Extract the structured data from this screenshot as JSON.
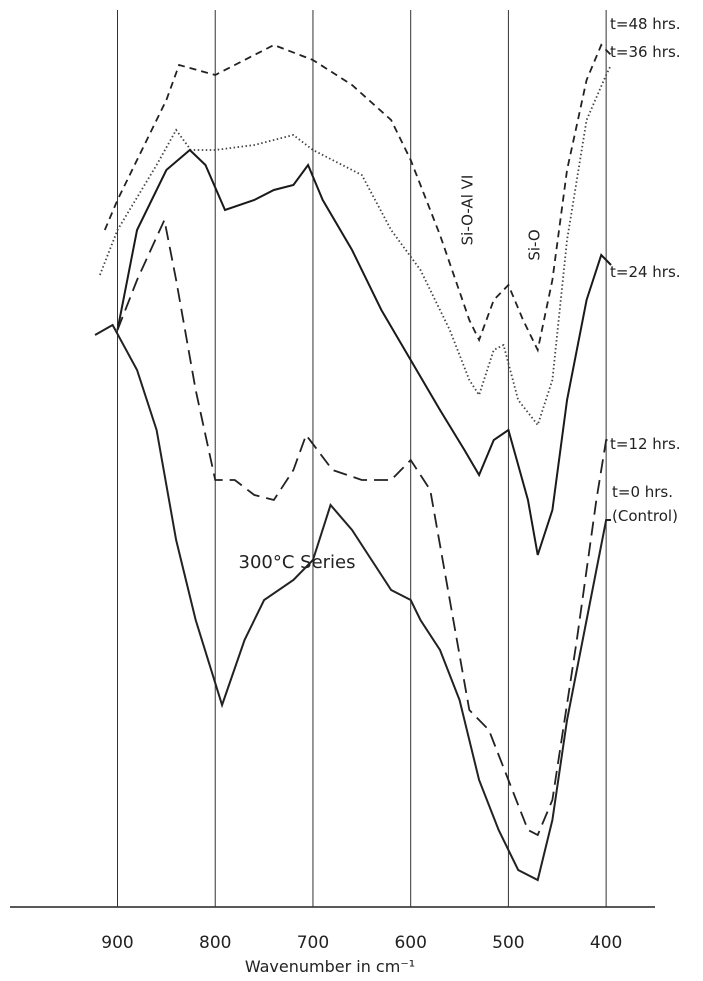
{
  "chart_data": {
    "type": "line",
    "x_label": "Wavenumber in cm⁻¹",
    "xlim": [
      1010,
      350
    ],
    "xticks": [
      900,
      800,
      700,
      600,
      500,
      400
    ],
    "grid": true,
    "ylim": [
      0,
      900
    ],
    "annotations": [
      "Si-O-Al VI",
      "Si-O",
      "300°C Series"
    ],
    "series": [
      {
        "name": "t=48 hrs.",
        "color": "#222222",
        "dash": "7,5",
        "x": [
          913,
          900,
          850,
          837,
          800,
          780,
          740,
          700,
          660,
          620,
          600,
          570,
          540,
          530,
          515,
          500,
          485,
          470,
          455,
          440,
          420,
          405,
          395
        ],
        "values": [
          677,
          707,
          807,
          842,
          832,
          842,
          862,
          847,
          822,
          787,
          747,
          672,
          587,
          567,
          607,
          622,
          587,
          557,
          627,
          737,
          827,
          862,
          852
        ]
      },
      {
        "name": "t=36 hrs.",
        "color": "#444444",
        "dash": "1.5,2.5",
        "x": [
          918,
          900,
          860,
          840,
          825,
          800,
          760,
          720,
          700,
          650,
          620,
          590,
          560,
          540,
          530,
          515,
          505,
          490,
          470,
          455,
          440,
          420,
          400,
          395
        ],
        "values": [
          632,
          677,
          742,
          777,
          757,
          757,
          762,
          772,
          757,
          732,
          677,
          637,
          577,
          527,
          512,
          557,
          562,
          507,
          482,
          527,
          667,
          787,
          832,
          842
        ]
      },
      {
        "name": "t=24 hrs.",
        "color": "#1a1a1a",
        "dash": "none",
        "x": [
          900,
          880,
          850,
          826,
          810,
          790,
          760,
          740,
          720,
          705,
          690,
          660,
          630,
          600,
          570,
          545,
          530,
          515,
          500,
          480,
          470,
          455,
          440,
          420,
          405,
          395
        ],
        "values": [
          577,
          677,
          737,
          757,
          742,
          697,
          707,
          717,
          722,
          742,
          707,
          657,
          597,
          547,
          497,
          457,
          432,
          467,
          477,
          407,
          352,
          397,
          507,
          607,
          652,
          642
        ]
      },
      {
        "name": "t=12 hrs.",
        "color": "#222222",
        "dash": "14,7",
        "x": [
          900,
          880,
          852,
          840,
          820,
          800,
          780,
          760,
          740,
          720,
          707,
          680,
          650,
          620,
          600,
          580,
          560,
          540,
          520,
          500,
          480,
          470,
          455,
          430,
          410,
          400,
          395
        ],
        "values": [
          577,
          627,
          687,
          627,
          517,
          427,
          427,
          412,
          407,
          437,
          472,
          437,
          427,
          427,
          447,
          417,
          307,
          197,
          177,
          127,
          77,
          72,
          107,
          267,
          407,
          467,
          467
        ]
      },
      {
        "name": "t=0 hrs.\n(Control)",
        "color": "#222222",
        "dash": "none",
        "x": [
          923,
          905,
          880,
          860,
          840,
          820,
          793,
          770,
          750,
          720,
          700,
          682,
          660,
          640,
          620,
          600,
          590,
          570,
          550,
          530,
          510,
          490,
          470,
          455,
          440,
          420,
          400,
          395
        ],
        "values": [
          572,
          582,
          537,
          477,
          367,
          287,
          202,
          267,
          307,
          327,
          347,
          402,
          377,
          347,
          317,
          307,
          287,
          257,
          207,
          127,
          77,
          37,
          27,
          87,
          187,
          287,
          387,
          387
        ]
      }
    ]
  }
}
